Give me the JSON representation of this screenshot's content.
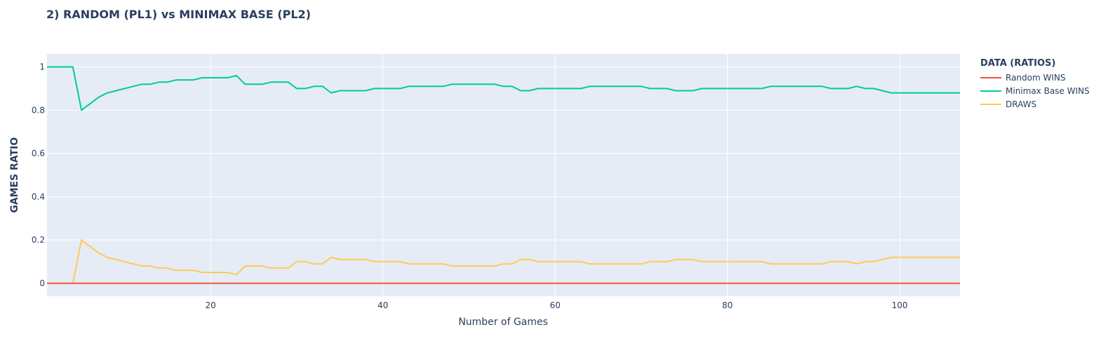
{
  "chart_data": {
    "type": "line",
    "title": "2) RANDOM (PL1) vs MINIMAX BASE (PL2)",
    "xlabel": "Number of Games",
    "ylabel": "GAMES RATIO",
    "xlim": [
      1,
      107
    ],
    "ylim": [
      -0.06,
      1.06
    ],
    "x_ticks": [
      20,
      40,
      60,
      80,
      100
    ],
    "y_ticks": [
      0,
      0.2,
      0.4,
      0.6,
      0.8,
      1
    ],
    "y_tick_labels": [
      "0",
      "0.2",
      "0.4",
      "0.6",
      "0.8",
      "1"
    ],
    "grid": true,
    "legend_title": "DATA (RATIOS)",
    "legend_position": "right",
    "series": [
      {
        "name": "Random WINS",
        "color": "#ef553b",
        "x": [
          1,
          107
        ],
        "values": [
          0,
          0
        ]
      },
      {
        "name": "Minimax Base WINS",
        "color": "#00cc96",
        "x": [
          1,
          4,
          5,
          7,
          8,
          12,
          13,
          14,
          15,
          16,
          18,
          19,
          22,
          23,
          24,
          26,
          27,
          29,
          30,
          31,
          32,
          33,
          34,
          35,
          38,
          39,
          42,
          43,
          47,
          48,
          53,
          54,
          55,
          56,
          57,
          58,
          63,
          64,
          70,
          71,
          73,
          74,
          76,
          77,
          84,
          85,
          91,
          92,
          94,
          95,
          96,
          97,
          99,
          107
        ],
        "values": [
          1,
          1,
          0.8,
          0.86,
          0.88,
          0.92,
          0.92,
          0.93,
          0.93,
          0.94,
          0.94,
          0.95,
          0.95,
          0.96,
          0.92,
          0.92,
          0.93,
          0.93,
          0.9,
          0.9,
          0.91,
          0.91,
          0.88,
          0.89,
          0.89,
          0.9,
          0.9,
          0.91,
          0.91,
          0.92,
          0.92,
          0.91,
          0.91,
          0.89,
          0.89,
          0.9,
          0.9,
          0.91,
          0.91,
          0.9,
          0.9,
          0.89,
          0.89,
          0.9,
          0.9,
          0.91,
          0.91,
          0.9,
          0.9,
          0.91,
          0.9,
          0.9,
          0.88,
          0.88
        ]
      },
      {
        "name": "DRAWS",
        "color": "#fecb52",
        "x": [
          1,
          4,
          5,
          7,
          8,
          12,
          13,
          14,
          15,
          16,
          18,
          19,
          22,
          23,
          24,
          26,
          27,
          29,
          30,
          31,
          32,
          33,
          34,
          35,
          38,
          39,
          42,
          43,
          47,
          48,
          53,
          54,
          55,
          56,
          57,
          58,
          63,
          64,
          70,
          71,
          73,
          74,
          76,
          77,
          84,
          85,
          91,
          92,
          94,
          95,
          96,
          97,
          99,
          107
        ],
        "values": [
          0,
          0,
          0.2,
          0.14,
          0.12,
          0.08,
          0.08,
          0.07,
          0.07,
          0.06,
          0.06,
          0.05,
          0.05,
          0.04,
          0.08,
          0.08,
          0.07,
          0.07,
          0.1,
          0.1,
          0.09,
          0.09,
          0.12,
          0.11,
          0.11,
          0.1,
          0.1,
          0.09,
          0.09,
          0.08,
          0.08,
          0.09,
          0.09,
          0.11,
          0.11,
          0.1,
          0.1,
          0.09,
          0.09,
          0.1,
          0.1,
          0.11,
          0.11,
          0.1,
          0.1,
          0.09,
          0.09,
          0.1,
          0.1,
          0.09,
          0.1,
          0.1,
          0.12,
          0.12
        ]
      }
    ]
  }
}
